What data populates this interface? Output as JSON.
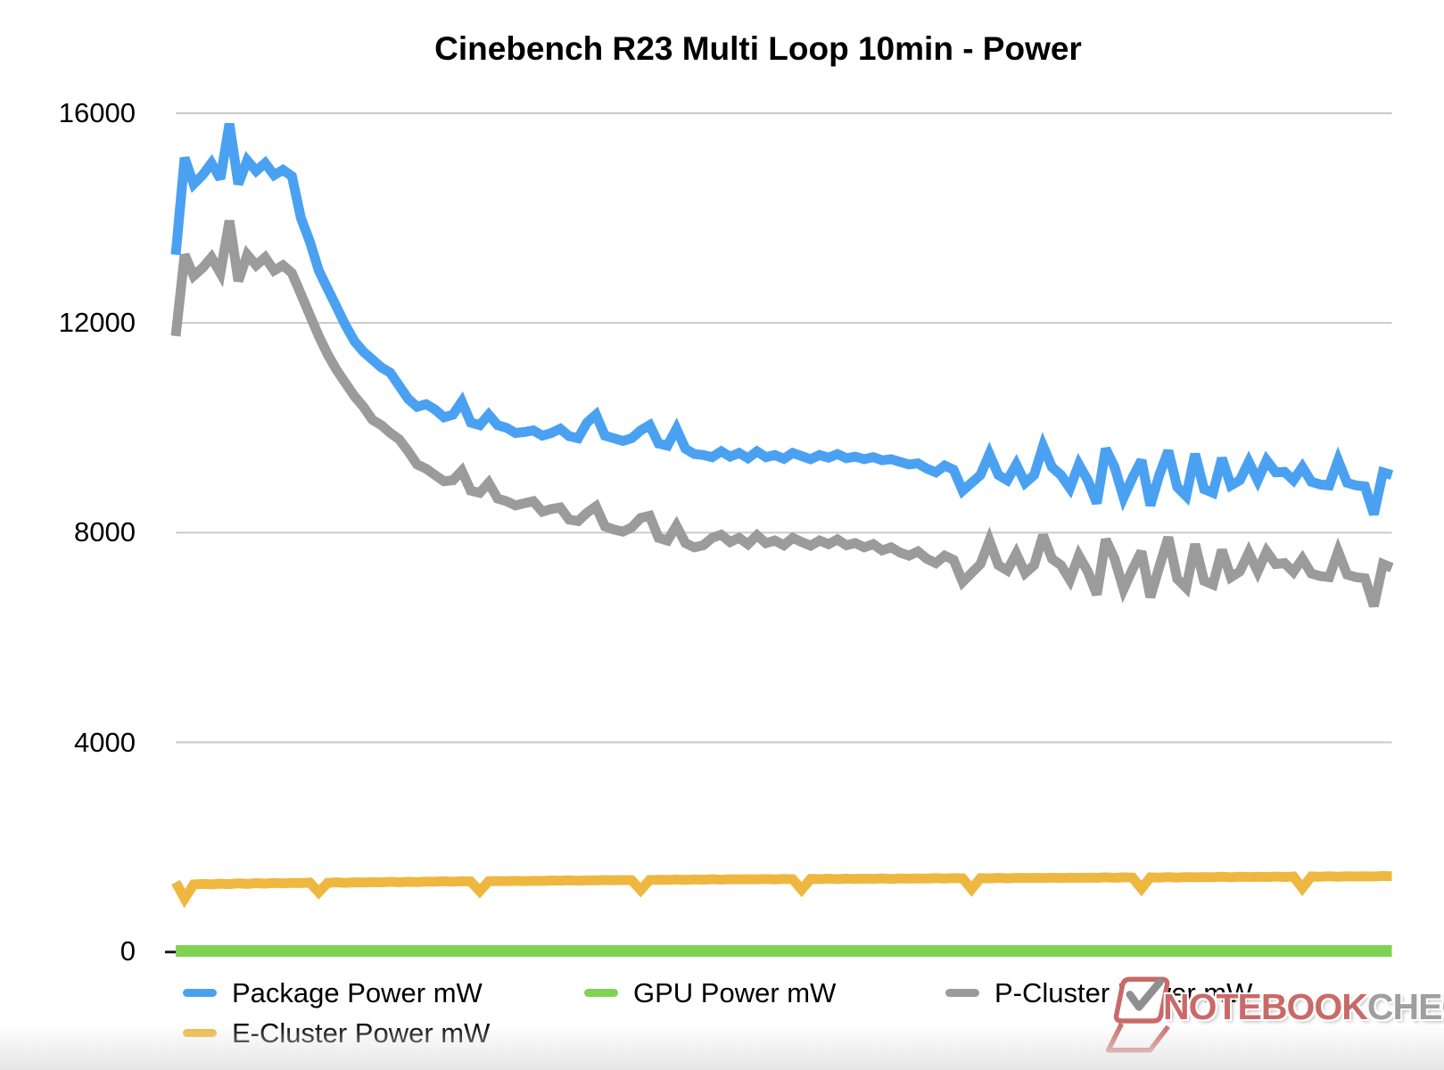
{
  "title": "Cinebench R23 Multi Loop 10min - Power",
  "axis": {
    "y_ticks": [
      "16000",
      "12000",
      "8000",
      "4000",
      "0"
    ],
    "y_tick_values": [
      16000,
      12000,
      8000,
      4000,
      0
    ]
  },
  "watermark": {
    "brand_primary": "NOTEBOOK",
    "brand_secondary": "CHECK",
    "icon": "laptop-with-checkmark",
    "color_primary": "#c96a68",
    "color_secondary": "#9f9f9f"
  },
  "colors": {
    "grid": "#c9c9c9",
    "axis_tick": "#1a1a1a",
    "text": "#000000",
    "background": "#ffffff"
  },
  "chart_data": {
    "type": "line",
    "title": "Cinebench R23 Multi Loop 10min - Power",
    "xlabel": "",
    "ylabel": "",
    "x_note": "time samples over 10 min run, no x tick labels shown; 137 samples",
    "ylim": [
      0,
      16000
    ],
    "grid": "horizontal",
    "legend_position": "bottom",
    "n_points": 137,
    "series": [
      {
        "name": "Package Power mW",
        "color": "#4aa1f1",
        "stroke_width": 11,
        "values": [
          13300,
          15150,
          14650,
          14820,
          15050,
          14750,
          15800,
          14650,
          15100,
          14900,
          15050,
          14820,
          14920,
          14800,
          14000,
          13550,
          13000,
          12650,
          12300,
          11950,
          11650,
          11450,
          11300,
          11150,
          11050,
          10800,
          10550,
          10400,
          10450,
          10350,
          10200,
          10250,
          10500,
          10100,
          10050,
          10250,
          10050,
          10000,
          9900,
          9920,
          9950,
          9850,
          9900,
          9980,
          9840,
          9800,
          10100,
          10250,
          9850,
          9800,
          9750,
          9800,
          9950,
          10050,
          9700,
          9660,
          9980,
          9600,
          9500,
          9480,
          9440,
          9550,
          9450,
          9520,
          9420,
          9550,
          9440,
          9480,
          9410,
          9520,
          9460,
          9400,
          9480,
          9430,
          9500,
          9420,
          9450,
          9400,
          9440,
          9380,
          9400,
          9350,
          9300,
          9320,
          9220,
          9150,
          9280,
          9200,
          8800,
          8950,
          9100,
          9500,
          9100,
          9000,
          9300,
          8950,
          9100,
          9650,
          9250,
          9100,
          8850,
          9300,
          9000,
          8560,
          9600,
          9250,
          8670,
          9050,
          9380,
          8520,
          9100,
          9560,
          8870,
          8700,
          9500,
          8830,
          8760,
          9420,
          8900,
          9000,
          9350,
          9000,
          9380,
          9150,
          9160,
          9000,
          9250,
          8970,
          8920,
          8900,
          9380,
          8950,
          8900,
          8880,
          8350,
          9150,
          9100
        ]
      },
      {
        "name": "GPU Power mW",
        "color": "#7ed353",
        "stroke_width": 13,
        "values": [
          20,
          20,
          20,
          20,
          20,
          20,
          20,
          20,
          20,
          20,
          20,
          20,
          20,
          20,
          20,
          20,
          20,
          20,
          20,
          20,
          20,
          20,
          20,
          20,
          20,
          20,
          20,
          20,
          20,
          20,
          20,
          20,
          20,
          20,
          20,
          20,
          20,
          20,
          20,
          20,
          20,
          20,
          20,
          20,
          20,
          20,
          20,
          20,
          20,
          20,
          20,
          20,
          20,
          20,
          20,
          20,
          20,
          20,
          20,
          20,
          20,
          20,
          20,
          20,
          20,
          20,
          20,
          20,
          20,
          20,
          20,
          20,
          20,
          20,
          20,
          20,
          20,
          20,
          20,
          20,
          20,
          20,
          20,
          20,
          20,
          20,
          20,
          20,
          20,
          20,
          20,
          20,
          20,
          20,
          20,
          20,
          20,
          20,
          20,
          20,
          20,
          20,
          20,
          20,
          20,
          20,
          20,
          20,
          20,
          20,
          20,
          20,
          20,
          20,
          20,
          20,
          20,
          20,
          20,
          20,
          20,
          20,
          20,
          20,
          20,
          20,
          20,
          20,
          20,
          20,
          20,
          20,
          20,
          20,
          20,
          20,
          20
        ]
      },
      {
        "name": "P-Cluster Power mW",
        "color": "#9b9b9b",
        "stroke_width": 11,
        "values": [
          11750,
          13300,
          12900,
          13050,
          13250,
          12950,
          13950,
          12800,
          13300,
          13100,
          13250,
          13000,
          13100,
          12950,
          12550,
          12150,
          11750,
          11400,
          11100,
          10850,
          10600,
          10400,
          10150,
          10050,
          9900,
          9780,
          9550,
          9300,
          9220,
          9100,
          8980,
          9000,
          9180,
          8800,
          8760,
          8950,
          8650,
          8600,
          8520,
          8560,
          8600,
          8400,
          8450,
          8480,
          8250,
          8220,
          8380,
          8500,
          8120,
          8060,
          8020,
          8100,
          8280,
          8320,
          7900,
          7850,
          8130,
          7800,
          7720,
          7760,
          7900,
          7960,
          7820,
          7900,
          7780,
          7950,
          7800,
          7850,
          7760,
          7900,
          7820,
          7750,
          7850,
          7780,
          7870,
          7760,
          7800,
          7720,
          7780,
          7660,
          7720,
          7620,
          7560,
          7640,
          7500,
          7420,
          7560,
          7480,
          7060,
          7230,
          7400,
          7850,
          7380,
          7280,
          7600,
          7230,
          7380,
          7950,
          7500,
          7380,
          7100,
          7560,
          7260,
          6820,
          7870,
          7500,
          6920,
          7300,
          7640,
          6770,
          7350,
          7910,
          7120,
          6950,
          7780,
          7080,
          7010,
          7670,
          7150,
          7260,
          7620,
          7260,
          7640,
          7400,
          7420,
          7250,
          7500,
          7220,
          7170,
          7150,
          7640,
          7200,
          7150,
          7130,
          6600,
          7400,
          7330
        ]
      },
      {
        "name": "E-Cluster Power mW",
        "color": "#eeb73f",
        "stroke_width": 11,
        "values": [
          1330,
          1020,
          1290,
          1300,
          1290,
          1305,
          1295,
          1310,
          1300,
          1315,
          1305,
          1320,
          1310,
          1320,
          1315,
          1325,
          1140,
          1320,
          1330,
          1320,
          1330,
          1325,
          1335,
          1330,
          1340,
          1330,
          1340,
          1335,
          1345,
          1340,
          1350,
          1340,
          1350,
          1345,
          1160,
          1350,
          1355,
          1350,
          1360,
          1350,
          1360,
          1355,
          1365,
          1360,
          1370,
          1360,
          1370,
          1365,
          1375,
          1370,
          1375,
          1370,
          1180,
          1375,
          1380,
          1375,
          1385,
          1375,
          1385,
          1380,
          1390,
          1380,
          1390,
          1385,
          1390,
          1385,
          1395,
          1385,
          1395,
          1390,
          1190,
          1395,
          1390,
          1400,
          1390,
          1400,
          1395,
          1400,
          1395,
          1405,
          1395,
          1405,
          1400,
          1405,
          1400,
          1410,
          1400,
          1410,
          1405,
          1200,
          1410,
          1405,
          1415,
          1405,
          1415,
          1410,
          1415,
          1410,
          1420,
          1410,
          1420,
          1415,
          1420,
          1415,
          1425,
          1415,
          1425,
          1420,
          1210,
          1425,
          1420,
          1430,
          1420,
          1430,
          1425,
          1430,
          1425,
          1435,
          1425,
          1435,
          1430,
          1435,
          1430,
          1440,
          1430,
          1440,
          1220,
          1440,
          1435,
          1445,
          1435,
          1445,
          1440,
          1445,
          1440,
          1450,
          1445
        ]
      }
    ]
  }
}
